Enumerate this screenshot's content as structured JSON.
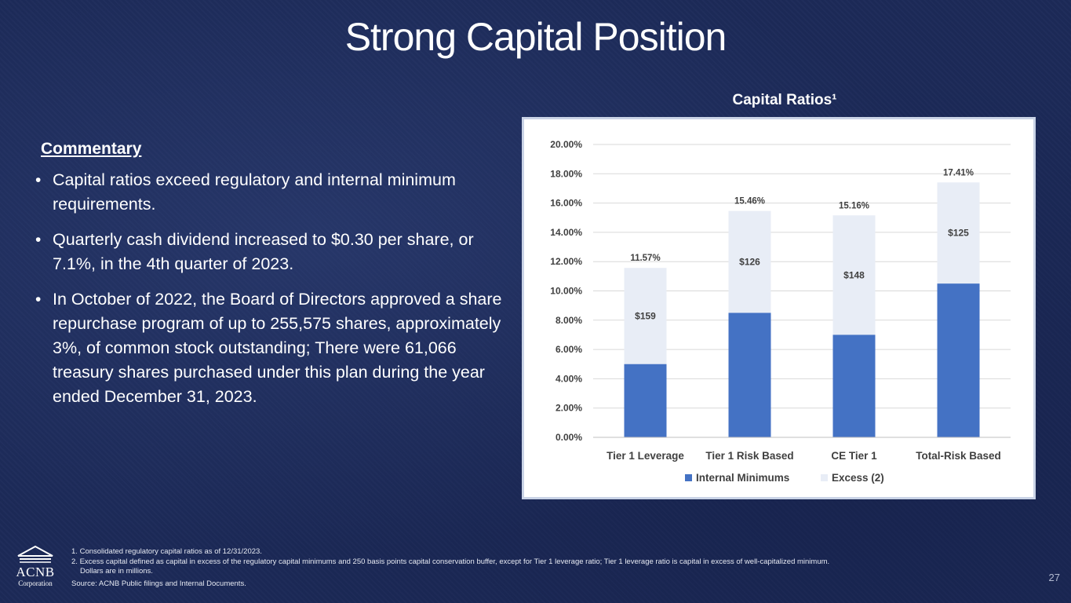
{
  "slide": {
    "title": "Strong Capital Position",
    "page_number": "27"
  },
  "commentary": {
    "heading": "Commentary",
    "bullet_char": "•",
    "bullets": [
      "Capital ratios exceed regulatory and internal minimum requirements.",
      "Quarterly cash dividend increased to $0.30 per share, or 7.1%, in the 4th quarter of 2023.",
      "In October of 2022, the Board of Directors approved a share repurchase program of up to 255,575 shares, approximately 3%, of common stock outstanding; There were 61,066 treasury shares purchased under this plan during the year ended December 31, 2023."
    ]
  },
  "chart_heading": "Capital Ratios¹",
  "chart_data": {
    "type": "bar",
    "stacked": true,
    "categories": [
      "Tier 1 Leverage",
      "Tier 1 Risk Based",
      "CE Tier 1",
      "Total-Risk Based"
    ],
    "series": [
      {
        "name": "Internal Minimums",
        "color": "#4472c4",
        "values": [
          5.0,
          8.5,
          7.0,
          10.5
        ]
      },
      {
        "name": "Excess  (2)",
        "color": "#e8edf6",
        "values": [
          6.57,
          6.96,
          8.16,
          6.91
        ]
      }
    ],
    "total_labels": [
      "11.57%",
      "15.46%",
      "15.16%",
      "17.41%"
    ],
    "excess_labels": [
      "$159",
      "$126",
      "$148",
      "$125"
    ],
    "y_ticks": [
      "0.00%",
      "2.00%",
      "4.00%",
      "6.00%",
      "8.00%",
      "10.00%",
      "12.00%",
      "14.00%",
      "16.00%",
      "18.00%",
      "20.00%"
    ],
    "ylim": [
      0,
      20
    ],
    "y_step": 2,
    "grid": true,
    "legend": "bottom",
    "xlabel": "",
    "ylabel": ""
  },
  "footnotes": {
    "items": [
      {
        "num": "1.",
        "text": "Consolidated regulatory capital ratios as of 12/31/2023.",
        "extra": ""
      },
      {
        "num": "2.",
        "text": "Excess capital defined as capital in excess of the regulatory capital minimums and 250 basis points capital conservation buffer, except for Tier 1 leverage ratio; Tier 1 leverage ratio is capital in excess of well-capitalized minimum.",
        "extra": "Dollars are in millions."
      }
    ],
    "source": "Source:  ACNB Public filings and Internal Documents."
  },
  "logo": {
    "name": "ACNB",
    "sub": "Corporation"
  }
}
